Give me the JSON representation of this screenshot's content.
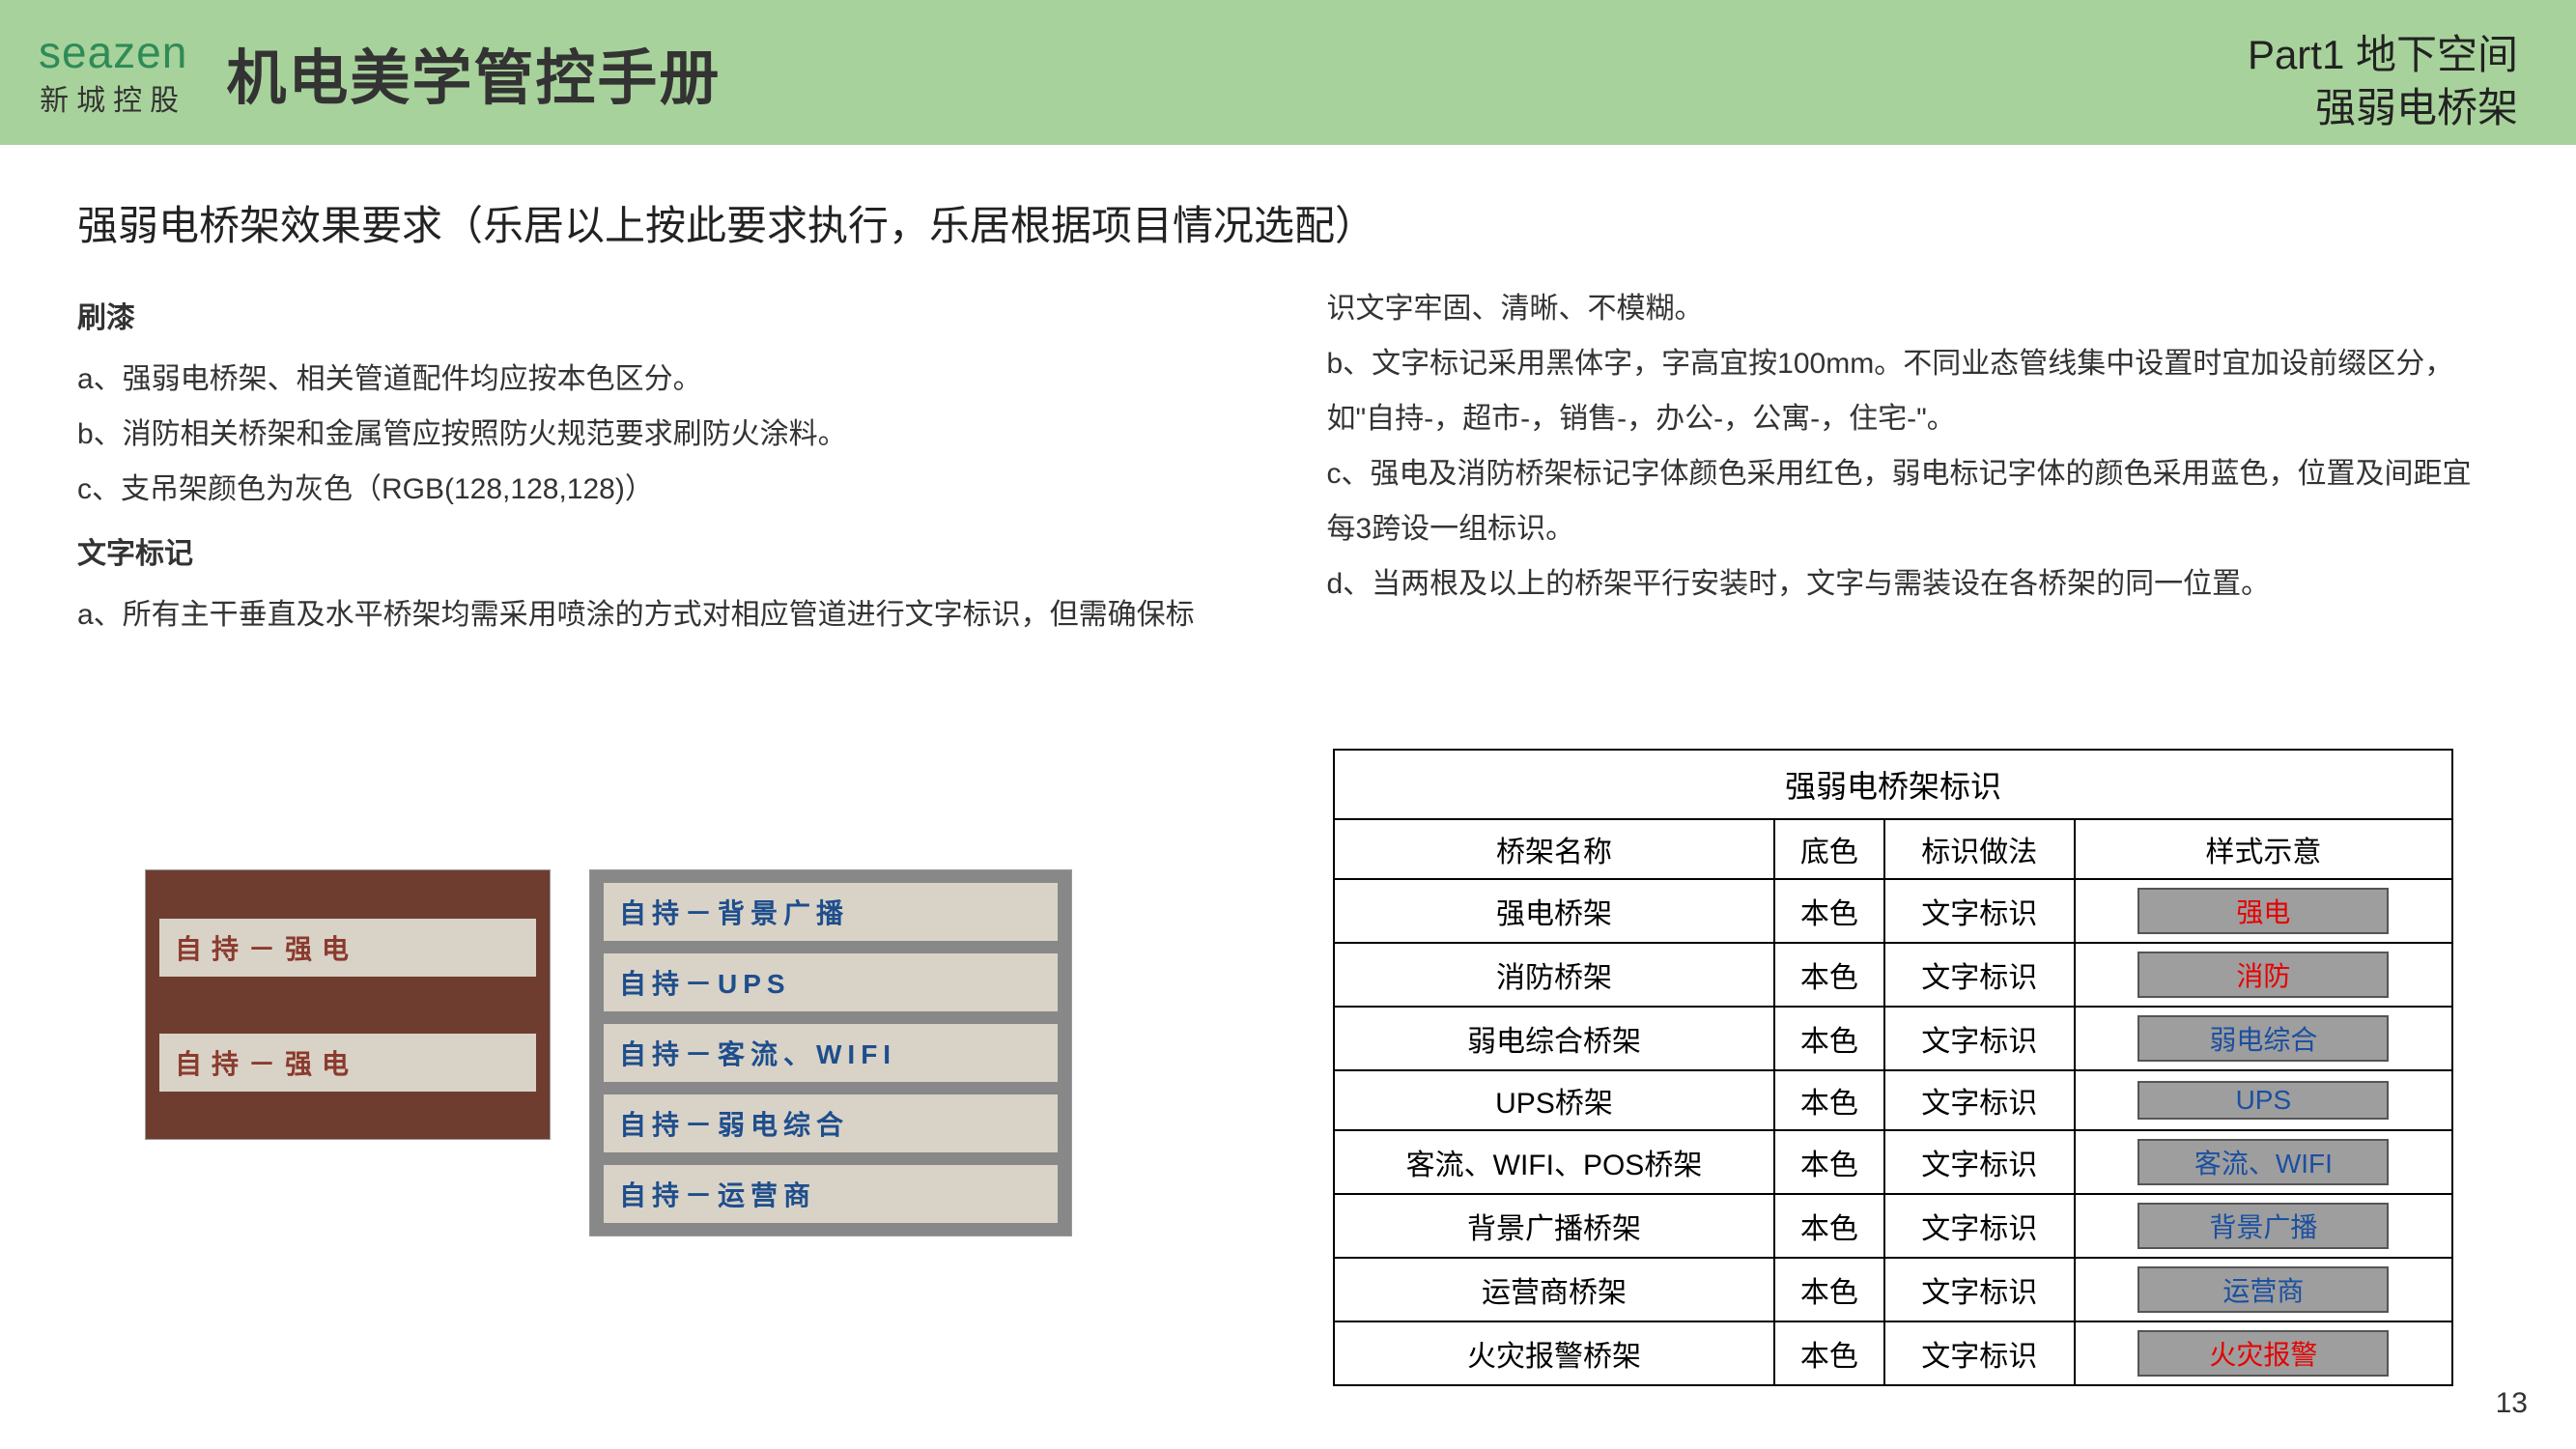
{
  "header": {
    "logo_main": "seazen",
    "logo_sub": "新城控股",
    "doc_title": "机电美学管控手册",
    "part_line1": "Part1 地下空间",
    "part_line2": "强弱电桥架"
  },
  "section_title": "强弱电桥架效果要求（乐居以上按此要求执行，乐居根据项目情况选配）",
  "left_col": {
    "sub1": "刷漆",
    "p1": "a、强弱电桥架、相关管道配件均应按本色区分。",
    "p2": "b、消防相关桥架和金属管应按照防火规范要求刷防火涂料。",
    "p3": "c、支吊架颜色为灰色（RGB(128,128,128)）",
    "sub2": "文字标记",
    "p4": "a、所有主干垂直及水平桥架均需采用喷涂的方式对相应管道进行文字标识，但需确保标"
  },
  "right_col": {
    "p1": "识文字牢固、清晰、不模糊。",
    "p2": "b、文字标记采用黑体字，字高宜按100mm。不同业态管线集中设置时宜加设前缀区分，如\"自持-，超市-，销售-，办公-，公寓-，住宅-\"。",
    "p3": "c、强电及消防桥架标记字体颜色采用红色，弱电标记字体的颜色采用蓝色，位置及间距宜每3跨设一组标识。",
    "p4": "d、当两根及以上的桥架平行安装时，文字与需装设在各桥架的同一位置。"
  },
  "photos": {
    "a1": "自持－强电",
    "a2": "自持－强电",
    "b1": "自持－背景广播",
    "b2": "自持－UPS",
    "b3": "自持－客流、WIFI",
    "b4": "自持－弱电综合",
    "b5": "自持－运营商"
  },
  "table": {
    "title": "强弱电桥架标识",
    "headers": [
      "桥架名称",
      "底色",
      "标识做法",
      "样式示意"
    ],
    "rows": [
      {
        "name": "强电桥架",
        "base": "本色",
        "method": "文字标识",
        "chip_text": "强电",
        "chip_color": "red"
      },
      {
        "name": "消防桥架",
        "base": "本色",
        "method": "文字标识",
        "chip_text": "消防",
        "chip_color": "red"
      },
      {
        "name": "弱电综合桥架",
        "base": "本色",
        "method": "文字标识",
        "chip_text": "弱电综合",
        "chip_color": "blue"
      },
      {
        "name": "UPS桥架",
        "base": "本色",
        "method": "文字标识",
        "chip_text": "UPS",
        "chip_color": "blue"
      },
      {
        "name": "客流、WIFI、POS桥架",
        "base": "本色",
        "method": "文字标识",
        "chip_text": "客流、WIFI",
        "chip_color": "blue"
      },
      {
        "name": "背景广播桥架",
        "base": "本色",
        "method": "文字标识",
        "chip_text": "背景广播",
        "chip_color": "blue"
      },
      {
        "name": "运营商桥架",
        "base": "本色",
        "method": "文字标识",
        "chip_text": "运营商",
        "chip_color": "blue"
      },
      {
        "name": "火灾报警桥架",
        "base": "本色",
        "method": "文字标识",
        "chip_text": "火灾报警",
        "chip_color": "red"
      }
    ]
  },
  "page_number": "13",
  "colors": {
    "header_bg": "#a8d29b",
    "logo_green": "#2e8b57",
    "chip_bg": "#9e9e9e",
    "red_text": "#e60000",
    "blue_text": "#1b4fa0"
  }
}
